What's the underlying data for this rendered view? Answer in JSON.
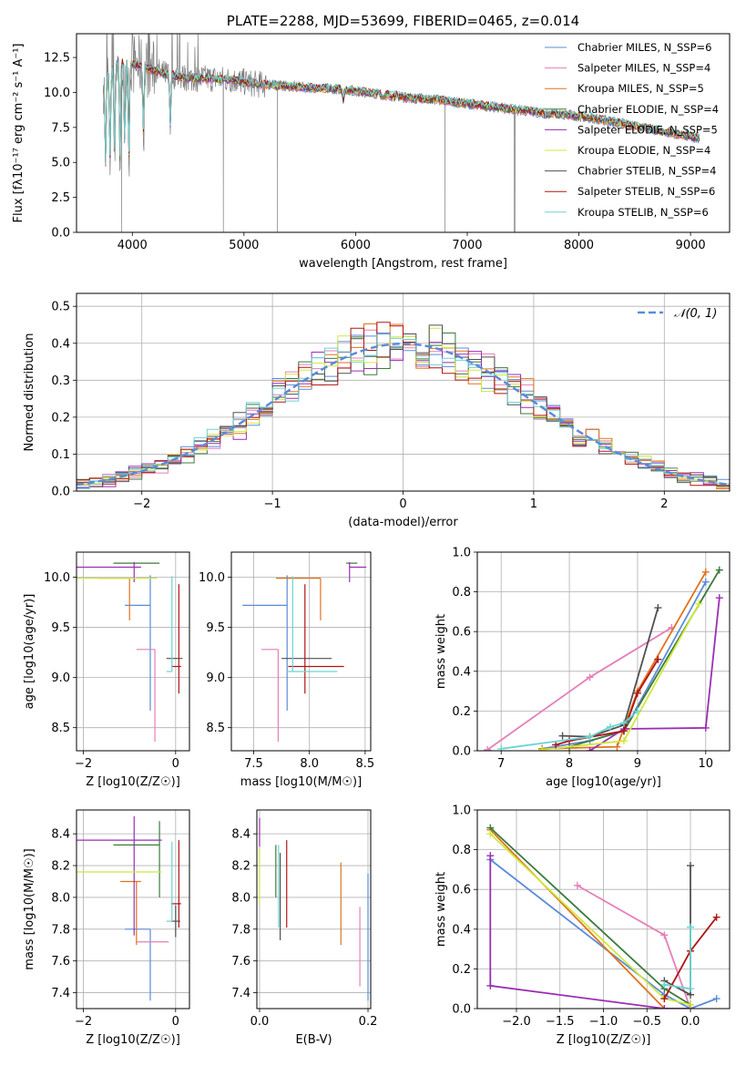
{
  "figure_title": "PLATE=2288, MJD=53699, FIBERID=0465, z=0.014",
  "palette": {
    "Chabrier MILES": "#5b8bd9",
    "Salpeter MILES": "#e57fb9",
    "Kroupa MILES": "#e0731c",
    "Chabrier ELODIE": "#3c7a3c",
    "Salpeter ELODIE": "#9a2fb3",
    "Kroupa ELODIE": "#cfe83a",
    "Chabrier STELIB": "#505050",
    "Salpeter STELIB": "#b01414",
    "Kroupa STELIB": "#6bd3d3",
    "data": "#7f7f7f",
    "gauss": "#5b8bd9"
  },
  "chart_data": [
    {
      "id": "spectrum",
      "type": "line",
      "title": "PLATE=2288, MJD=53699, FIBERID=0465, z=0.014",
      "xlabel": "wavelength [Angstrom, rest frame]",
      "ylabel": "Flux [fλ10⁻¹⁷ erg cm⁻² s⁻¹ A⁻¹]",
      "xlim": [
        3500,
        9350
      ],
      "ylim": [
        0,
        14.2
      ],
      "xticks": [
        4000,
        5000,
        6000,
        7000,
        8000,
        9000
      ],
      "yticks": [
        0.0,
        2.5,
        5.0,
        7.5,
        10.0,
        12.5
      ],
      "legend_position": "upper right",
      "legend": [
        "Chabrier MILES, N_SSP=6",
        "Salpeter MILES, N_SSP=4",
        "Kroupa MILES, N_SSP=5",
        "Chabrier ELODIE, N_SSP=4",
        "Salpeter ELODIE, N_SSP=5",
        "Kroupa ELODIE, N_SSP=4",
        "Chabrier STELIB, N_SSP=4",
        "Salpeter STELIB, N_SSP=6",
        "Kroupa STELIB, N_SSP=6"
      ],
      "continuum": {
        "x": [
          3750,
          3850,
          3950,
          4100,
          4300,
          4500,
          4700,
          4900,
          5100,
          5300,
          5500,
          5700,
          5900,
          6100,
          6300,
          6500,
          6700,
          6900,
          7100,
          7300,
          7500,
          7700,
          7900,
          8100,
          8300,
          8500,
          8700,
          8900,
          9100
        ],
        "y": [
          10.8,
          12.0,
          12.2,
          11.8,
          11.3,
          11.0,
          11.0,
          10.9,
          10.6,
          10.5,
          10.4,
          10.3,
          10.2,
          10.0,
          9.8,
          9.6,
          9.5,
          9.3,
          9.1,
          8.9,
          8.7,
          8.5,
          8.4,
          8.2,
          7.9,
          7.6,
          7.3,
          7.0,
          6.7
        ]
      },
      "absorption_features": [
        {
          "x": 3760,
          "y": 4.3
        },
        {
          "x": 3800,
          "y": 4.8
        },
        {
          "x": 3840,
          "y": 5.0
        },
        {
          "x": 3890,
          "y": 4.6
        },
        {
          "x": 3933,
          "y": 5.2
        },
        {
          "x": 3968,
          "y": 4.4
        },
        {
          "x": 4100,
          "y": 6.8
        },
        {
          "x": 4340,
          "y": 7.3
        },
        {
          "x": 5890,
          "y": 9.4
        }
      ],
      "data_spikes_down": [
        {
          "x": 3905,
          "y": 0.0
        },
        {
          "x": 4815,
          "y": 0.0
        },
        {
          "x": 5300,
          "y": 0.0
        },
        {
          "x": 6800,
          "y": 0.0
        },
        {
          "x": 7420,
          "y": 0.0
        },
        {
          "x": 7430,
          "y": 0.0
        }
      ]
    },
    {
      "id": "residuals",
      "type": "histogram",
      "xlabel": "(data-model)/error",
      "ylabel": "Normed distribution",
      "xlim": [
        -2.5,
        2.5
      ],
      "ylim": [
        0,
        0.535
      ],
      "xticks": [
        -2,
        -1,
        0,
        1,
        2
      ],
      "yticks": [
        0.0,
        0.1,
        0.2,
        0.3,
        0.4,
        0.5
      ],
      "grid": true,
      "bin_width": 0.1,
      "bin_start": -2.5,
      "gauss_label": "𝒩(0, 1)",
      "legend_position": "upper right"
    },
    {
      "id": "age_vs_Z",
      "type": "errorbar",
      "xlabel": "Z [log10(Z/Z☉)]",
      "ylabel": "age  [log10(age/yr)]",
      "xlim": [
        -2.15,
        0.3
      ],
      "ylim": [
        8.27,
        10.25
      ],
      "xticks": [
        -2,
        0
      ],
      "yticks": [
        8.5,
        9.0,
        9.5,
        10.0
      ],
      "grid": true,
      "points": [
        {
          "model": "Chabrier MILES",
          "x": -0.55,
          "xerr": [
            0.55,
            0.0
          ],
          "y": 9.72,
          "yerr": [
            1.05,
            0.3
          ]
        },
        {
          "model": "Salpeter MILES",
          "x": -0.45,
          "xerr": [
            0.4,
            0.0
          ],
          "y": 9.28,
          "yerr": [
            0.92,
            0.0
          ]
        },
        {
          "model": "Kroupa MILES",
          "x": -1.0,
          "xerr": [
            0.7,
            0.0
          ],
          "y": 9.99,
          "yerr": [
            0.42,
            0.0
          ]
        },
        {
          "model": "Chabrier ELODIE",
          "x": -0.35,
          "xerr": [
            1.0,
            0.0
          ],
          "y": 10.14,
          "yerr": [
            0.0,
            0.0
          ]
        },
        {
          "model": "Salpeter ELODIE",
          "x": -0.9,
          "xerr": [
            1.25,
            0.15
          ],
          "y": 10.1,
          "yerr": [
            0.15,
            0.05
          ]
        },
        {
          "model": "Kroupa ELODIE",
          "x": -0.9,
          "xerr": [
            1.25,
            0.5
          ],
          "y": 9.99,
          "yerr": [
            0.0,
            0.0
          ]
        },
        {
          "model": "Chabrier STELIB",
          "x": 0.0,
          "xerr": [
            0.2,
            0.15
          ],
          "y": 9.19,
          "yerr": [
            0.0,
            0.0
          ]
        },
        {
          "model": "Salpeter STELIB",
          "x": 0.07,
          "xerr": [
            0.16,
            0.05
          ],
          "y": 9.11,
          "yerr": [
            0.27,
            0.82
          ]
        },
        {
          "model": "Kroupa STELIB",
          "x": -0.08,
          "xerr": [
            0.12,
            0.0
          ],
          "y": 9.06,
          "yerr": [
            0.0,
            0.95
          ]
        }
      ]
    },
    {
      "id": "age_vs_mass",
      "type": "errorbar",
      "xlabel": "mass [log10(M/M☉)]",
      "ylabel": "",
      "xlim": [
        7.3,
        8.55
      ],
      "ylim": [
        8.27,
        10.25
      ],
      "xticks": [
        7.5,
        8.0,
        8.5
      ],
      "yticks": [
        8.5,
        9.0,
        9.5,
        10.0
      ],
      "grid": true,
      "points": [
        {
          "model": "Chabrier MILES",
          "x": 7.8,
          "xerr": [
            0.4,
            0.0
          ],
          "y": 9.72,
          "yerr": [
            1.05,
            0.3
          ]
        },
        {
          "model": "Salpeter MILES",
          "x": 7.72,
          "xerr": [
            0.15,
            0.0
          ],
          "y": 9.28,
          "yerr": [
            0.92,
            0.0
          ]
        },
        {
          "model": "Kroupa MILES",
          "x": 8.1,
          "xerr": [
            0.4,
            0.0
          ],
          "y": 9.99,
          "yerr": [
            0.42,
            0.0
          ]
        },
        {
          "model": "Chabrier ELODIE",
          "x": 8.33,
          "xerr": [
            0.0,
            0.1
          ],
          "y": 10.14,
          "yerr": [
            0.0,
            0.0
          ]
        },
        {
          "model": "Salpeter ELODIE",
          "x": 8.36,
          "xerr": [
            0.0,
            0.15
          ],
          "y": 10.1,
          "yerr": [
            0.15,
            0.05
          ]
        },
        {
          "model": "Kroupa ELODIE",
          "x": 8.16,
          "xerr": [
            0.0,
            0.0
          ],
          "y": 9.99,
          "yerr": [
            0.0,
            0.0
          ]
        },
        {
          "model": "Chabrier STELIB",
          "x": 7.85,
          "xerr": [
            0.1,
            0.35
          ],
          "y": 9.19,
          "yerr": [
            0.0,
            0.0
          ]
        },
        {
          "model": "Salpeter STELIB",
          "x": 7.96,
          "xerr": [
            0.15,
            0.35
          ],
          "y": 9.11,
          "yerr": [
            0.27,
            0.82
          ]
        },
        {
          "model": "Kroupa STELIB",
          "x": 7.85,
          "xerr": [
            0.05,
            0.4
          ],
          "y": 9.06,
          "yerr": [
            0.0,
            0.95
          ]
        }
      ]
    },
    {
      "id": "massweight_vs_age",
      "type": "line",
      "xlabel": "age  [log10(age/yr)]",
      "ylabel": "mass weight",
      "xlim": [
        6.65,
        10.35
      ],
      "ylim": [
        0,
        1.0
      ],
      "xticks": [
        7,
        8,
        9,
        10
      ],
      "yticks": [
        0.0,
        0.2,
        0.4,
        0.6,
        0.8,
        1.0
      ],
      "grid": true,
      "series": [
        {
          "model": "Chabrier MILES",
          "x": [
            7.6,
            8.3,
            8.8,
            10.0
          ],
          "y": [
            0.01,
            0.05,
            0.1,
            0.85
          ]
        },
        {
          "model": "Salpeter MILES",
          "x": [
            6.8,
            8.3,
            9.5
          ],
          "y": [
            0.005,
            0.37,
            0.62
          ]
        },
        {
          "model": "Kroupa MILES",
          "x": [
            7.6,
            8.7,
            9.0,
            10.0
          ],
          "y": [
            0.01,
            0.02,
            0.3,
            0.9
          ]
        },
        {
          "model": "Chabrier ELODIE",
          "x": [
            8.0,
            8.8,
            10.2
          ],
          "y": [
            0.02,
            0.1,
            0.91
          ]
        },
        {
          "model": "Salpeter ELODIE",
          "x": [
            8.3,
            8.8,
            10.0,
            10.2
          ],
          "y": [
            0.0,
            0.11,
            0.115,
            0.77
          ]
        },
        {
          "model": "Kroupa ELODIE",
          "x": [
            7.6,
            8.8,
            9.9
          ],
          "y": [
            0.005,
            0.05,
            0.74
          ]
        },
        {
          "model": "Chabrier STELIB",
          "x": [
            7.9,
            8.3,
            8.8,
            9.3
          ],
          "y": [
            0.075,
            0.07,
            0.13,
            0.72
          ]
        },
        {
          "model": "Salpeter STELIB",
          "x": [
            7.8,
            8.0,
            8.8,
            9.0,
            9.3
          ],
          "y": [
            0.03,
            0.05,
            0.1,
            0.29,
            0.46
          ]
        },
        {
          "model": "Kroupa STELIB",
          "x": [
            7.0,
            8.3,
            8.6,
            8.8,
            9.0
          ],
          "y": [
            0.01,
            0.07,
            0.12,
            0.14,
            0.2
          ]
        }
      ]
    },
    {
      "id": "mass_vs_Z",
      "type": "errorbar",
      "xlabel": "Z [log10(Z/Z☉)]",
      "ylabel": "mass [log10(M/M☉)]",
      "xlim": [
        -2.15,
        0.3
      ],
      "ylim": [
        7.3,
        8.55
      ],
      "xticks": [
        -2,
        0
      ],
      "yticks": [
        7.4,
        7.6,
        7.8,
        8.0,
        8.2,
        8.4
      ],
      "grid": true,
      "points": [
        {
          "model": "Chabrier MILES",
          "x": -0.55,
          "xerr": [
            0.55,
            0.0
          ],
          "y": 7.8,
          "yerr": [
            0.45,
            0.0
          ]
        },
        {
          "model": "Salpeter MILES",
          "x": -0.45,
          "xerr": [
            0.4,
            0.3
          ],
          "y": 7.72,
          "yerr": [
            0.0,
            0.0
          ]
        },
        {
          "model": "Kroupa MILES",
          "x": -0.85,
          "xerr": [
            0.35,
            0.1
          ],
          "y": 8.1,
          "yerr": [
            0.4,
            0.0
          ]
        },
        {
          "model": "Chabrier ELODIE",
          "x": -0.35,
          "xerr": [
            1.0,
            0.0
          ],
          "y": 8.33,
          "yerr": [
            0.33,
            0.15
          ]
        },
        {
          "model": "Salpeter ELODIE",
          "x": -0.9,
          "xerr": [
            1.25,
            0.6
          ],
          "y": 8.36,
          "yerr": [
            0.6,
            0.15
          ]
        },
        {
          "model": "Kroupa ELODIE",
          "x": -0.9,
          "xerr": [
            1.25,
            0.6
          ],
          "y": 8.16,
          "yerr": [
            0.0,
            0.0
          ]
        },
        {
          "model": "Chabrier STELIB",
          "x": 0.0,
          "xerr": [
            0.1,
            0.1
          ],
          "y": 7.85,
          "yerr": [
            0.1,
            0.1
          ]
        },
        {
          "model": "Salpeter STELIB",
          "x": 0.07,
          "xerr": [
            0.17,
            0.05
          ],
          "y": 7.96,
          "yerr": [
            0.15,
            0.4
          ]
        },
        {
          "model": "Kroupa STELIB",
          "x": -0.08,
          "xerr": [
            0.12,
            0.0
          ],
          "y": 7.85,
          "yerr": [
            0.0,
            0.5
          ]
        }
      ]
    },
    {
      "id": "mass_vs_EBV",
      "type": "errorbar",
      "xlabel": "E(B-V)",
      "ylabel": "",
      "xlim": [
        -0.005,
        0.205
      ],
      "ylim": [
        7.3,
        8.55
      ],
      "xticks": [
        0.0,
        0.2
      ],
      "yticks": [
        7.4,
        7.6,
        7.8,
        8.0,
        8.2,
        8.4
      ],
      "grid": true,
      "points": [
        {
          "model": "Chabrier MILES",
          "x": 0.2,
          "xerr": [
            0.0,
            0.0
          ],
          "y": 7.8,
          "yerr": [
            0.45,
            0.35
          ]
        },
        {
          "model": "Salpeter MILES",
          "x": 0.185,
          "xerr": [
            0.0,
            0.0
          ],
          "y": 7.72,
          "yerr": [
            0.28,
            0.22
          ]
        },
        {
          "model": "Kroupa MILES",
          "x": 0.15,
          "xerr": [
            0.0,
            0.0
          ],
          "y": 8.1,
          "yerr": [
            0.4,
            0.12
          ]
        },
        {
          "model": "Chabrier ELODIE",
          "x": 0.03,
          "xerr": [
            0.0,
            0.0
          ],
          "y": 8.33,
          "yerr": [
            0.33,
            0.0
          ]
        },
        {
          "model": "Salpeter ELODIE",
          "x": 0.0,
          "xerr": [
            0.0,
            0.0
          ],
          "y": 8.42,
          "yerr": [
            0.1,
            0.08
          ]
        },
        {
          "model": "Kroupa ELODIE",
          "x": 0.0,
          "xerr": [
            0.0,
            0.0
          ],
          "y": 8.16,
          "yerr": [
            0.2,
            0.15
          ]
        },
        {
          "model": "Chabrier STELIB",
          "x": 0.038,
          "xerr": [
            0.0,
            0.0
          ],
          "y": 8.0,
          "yerr": [
            0.27,
            0.28
          ]
        },
        {
          "model": "Salpeter STELIB",
          "x": 0.05,
          "xerr": [
            0.0,
            0.0
          ],
          "y": 8.08,
          "yerr": [
            0.27,
            0.28
          ]
        },
        {
          "model": "Kroupa STELIB",
          "x": 0.035,
          "xerr": [
            0.0,
            0.0
          ],
          "y": 8.08,
          "yerr": [
            0.27,
            0.25
          ]
        }
      ]
    },
    {
      "id": "massweight_vs_Z",
      "type": "line",
      "xlabel": "Z [log10(Z/Z☉)]",
      "ylabel": "mass weight",
      "xlim": [
        -2.45,
        0.45
      ],
      "ylim": [
        0,
        1.0
      ],
      "xticks": [
        -2.0,
        -1.5,
        -1.0,
        -0.5,
        0.0
      ],
      "yticks": [
        0.0,
        0.2,
        0.4,
        0.6,
        0.8,
        1.0
      ],
      "grid": true,
      "series": [
        {
          "model": "Chabrier MILES",
          "x": [
            -2.3,
            -0.3,
            0.0,
            0.3
          ],
          "y": [
            0.75,
            0.07,
            0.0,
            0.05
          ]
        },
        {
          "model": "Salpeter MILES",
          "x": [
            -1.3,
            -0.3,
            0.0
          ],
          "y": [
            0.62,
            0.37,
            0.0
          ]
        },
        {
          "model": "Kroupa MILES",
          "x": [
            -2.3,
            -0.3,
            0.0
          ],
          "y": [
            0.9,
            0.0,
            0.0
          ]
        },
        {
          "model": "Chabrier ELODIE",
          "x": [
            -2.3,
            -0.3,
            0.0
          ],
          "y": [
            0.91,
            0.1,
            0.02
          ]
        },
        {
          "model": "Salpeter ELODIE",
          "x": [
            -2.3,
            -2.3,
            -0.3,
            0.0
          ],
          "y": [
            0.77,
            0.115,
            0.0,
            0.0
          ]
        },
        {
          "model": "Kroupa ELODIE",
          "x": [
            -2.3,
            -0.3,
            0.0
          ],
          "y": [
            0.88,
            0.05,
            0.02
          ]
        },
        {
          "model": "Chabrier STELIB",
          "x": [
            -0.3,
            0.0,
            0.0
          ],
          "y": [
            0.14,
            0.07,
            0.72
          ]
        },
        {
          "model": "Salpeter STELIB",
          "x": [
            -0.3,
            0.0,
            0.3
          ],
          "y": [
            0.05,
            0.29,
            0.46
          ]
        },
        {
          "model": "Kroupa STELIB",
          "x": [
            -0.3,
            0.0,
            0.0
          ],
          "y": [
            0.12,
            0.1,
            0.41
          ]
        }
      ]
    }
  ]
}
